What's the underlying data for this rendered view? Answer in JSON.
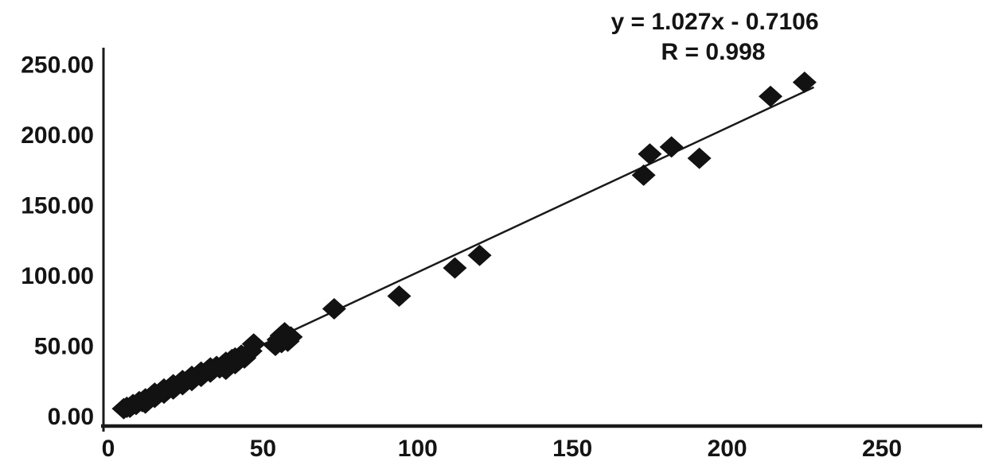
{
  "chart_data": {
    "type": "scatter",
    "title": "",
    "xlabel": "",
    "ylabel": "",
    "xlim": [
      0,
      284
    ],
    "ylim": [
      -8,
      262
    ],
    "grid": false,
    "legend": "none",
    "annotation": {
      "equation": "y = 1.027x - 0.7106",
      "r_value": "R = 0.998"
    },
    "x_ticks": [
      0,
      50,
      100,
      150,
      200,
      250
    ],
    "x_tick_labels": [
      "0",
      "50",
      "100",
      "150",
      "200",
      "250"
    ],
    "y_ticks": [
      0,
      50,
      100,
      150,
      200,
      250
    ],
    "y_tick_labels": [
      "0.00",
      "50.00",
      "100.00",
      "150.00",
      "200.00",
      "250.00"
    ],
    "marker": "diamond",
    "colors": {
      "marker": "#121212",
      "trendline": "#1a1a1a",
      "axis": "#1a1a1a",
      "text": "#141414",
      "background": "#ffffff"
    },
    "trendline": {
      "slope": 1.027,
      "intercept": -0.7106,
      "x_start": 4.5,
      "x_end": 228
    },
    "points": [
      [
        5,
        5
      ],
      [
        6,
        6
      ],
      [
        7,
        6
      ],
      [
        8,
        8
      ],
      [
        9,
        8
      ],
      [
        10,
        10
      ],
      [
        11,
        10
      ],
      [
        12,
        12
      ],
      [
        12,
        9
      ],
      [
        13,
        12
      ],
      [
        14,
        14
      ],
      [
        15,
        13
      ],
      [
        15,
        16
      ],
      [
        16,
        15
      ],
      [
        17,
        17
      ],
      [
        18,
        16
      ],
      [
        18,
        19
      ],
      [
        19,
        18
      ],
      [
        20,
        20
      ],
      [
        21,
        19
      ],
      [
        21,
        22
      ],
      [
        22,
        21
      ],
      [
        23,
        23
      ],
      [
        24,
        22
      ],
      [
        24,
        25
      ],
      [
        25,
        24
      ],
      [
        26,
        26
      ],
      [
        27,
        25
      ],
      [
        27,
        28
      ],
      [
        28,
        27
      ],
      [
        29,
        29
      ],
      [
        30,
        28
      ],
      [
        30,
        31
      ],
      [
        31,
        30
      ],
      [
        32,
        32
      ],
      [
        33,
        31
      ],
      [
        33,
        34
      ],
      [
        34,
        33
      ],
      [
        35,
        35
      ],
      [
        36,
        34
      ],
      [
        37,
        36
      ],
      [
        38,
        33
      ],
      [
        38,
        38
      ],
      [
        39,
        36
      ],
      [
        40,
        40
      ],
      [
        41,
        37
      ],
      [
        41,
        41
      ],
      [
        42,
        39
      ],
      [
        43,
        43
      ],
      [
        44,
        41
      ],
      [
        45,
        44
      ],
      [
        46,
        46
      ],
      [
        47,
        51
      ],
      [
        54,
        50
      ],
      [
        55,
        54
      ],
      [
        56,
        57
      ],
      [
        56,
        52
      ],
      [
        57,
        55
      ],
      [
        57,
        59
      ],
      [
        58,
        53
      ],
      [
        59,
        56
      ],
      [
        73,
        76
      ],
      [
        94,
        85
      ],
      [
        112,
        105
      ],
      [
        120,
        114
      ],
      [
        173,
        171
      ],
      [
        175,
        186
      ],
      [
        182,
        191
      ],
      [
        191,
        183
      ],
      [
        214,
        227
      ],
      [
        225,
        237
      ]
    ]
  }
}
